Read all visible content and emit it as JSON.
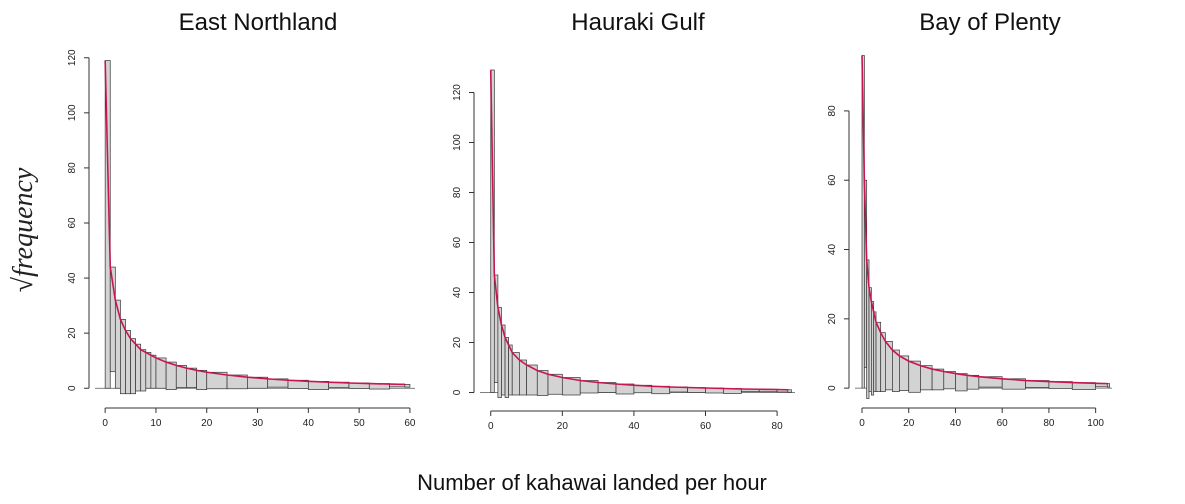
{
  "y_label": "√frequency",
  "x_label": "Number of kahawai landed per hour",
  "chart_data": [
    {
      "type": "rootogram",
      "title": "East Northland",
      "color": "#c8174f",
      "bar_color": "#d3d3d3",
      "x": [
        0,
        1,
        2,
        3,
        4,
        5,
        6,
        7,
        8,
        9,
        10,
        12,
        14,
        16,
        18,
        20,
        24,
        28,
        32,
        36,
        40,
        44,
        48,
        52,
        56,
        59
      ],
      "fitted": [
        119,
        44,
        32,
        25,
        21,
        18,
        16,
        14,
        13,
        12,
        11,
        9.5,
        8.3,
        7.3,
        6.5,
        5.8,
        4.8,
        4,
        3.4,
        2.9,
        2.5,
        2.2,
        1.9,
        1.7,
        1.5,
        1.4
      ],
      "observed": [
        119,
        38,
        32,
        27,
        23,
        20,
        17,
        15,
        13,
        12,
        11,
        10,
        8,
        7,
        7,
        6,
        5,
        4,
        3,
        3,
        3,
        2,
        2,
        2,
        1,
        1
      ],
      "xlim": [
        -2,
        61
      ],
      "ylim": [
        -5,
        121
      ],
      "xticks": [
        0,
        10,
        20,
        30,
        40,
        50,
        60
      ],
      "yticks": [
        0,
        20,
        40,
        60,
        80,
        100,
        120
      ]
    },
    {
      "type": "rootogram",
      "title": "Hauraki Gulf",
      "color": "#c8174f",
      "bar_color": "#d3d3d3",
      "x": [
        0,
        1,
        2,
        3,
        4,
        5,
        6,
        8,
        10,
        13,
        16,
        20,
        25,
        30,
        35,
        40,
        45,
        50,
        55,
        60,
        65,
        70,
        75,
        80,
        83
      ],
      "fitted": [
        129,
        47,
        34,
        27,
        22,
        19,
        16,
        13,
        11,
        8.8,
        7.3,
        6,
        4.8,
        4,
        3.4,
        2.9,
        2.5,
        2.2,
        2,
        1.8,
        1.6,
        1.4,
        1.3,
        1.2,
        1.1
      ],
      "observed": [
        129,
        43,
        36,
        28,
        24,
        20,
        17,
        14,
        12,
        10,
        8,
        7,
        5,
        4,
        4,
        3,
        3,
        2,
        2,
        2,
        2,
        1,
        1,
        1,
        1
      ],
      "xlim": [
        -3,
        85
      ],
      "ylim": [
        -5,
        131
      ],
      "xticks": [
        0,
        20,
        40,
        60,
        80
      ],
      "yticks": [
        0,
        20,
        40,
        60,
        80,
        100,
        120
      ]
    },
    {
      "type": "rootogram",
      "title": "Bay of Plenty",
      "color": "#c8174f",
      "bar_color": "#d3d3d3",
      "x": [
        0,
        1,
        2,
        3,
        4,
        5,
        6,
        8,
        10,
        13,
        16,
        20,
        25,
        30,
        35,
        40,
        45,
        50,
        60,
        70,
        80,
        90,
        100,
        105
      ],
      "fitted": [
        96,
        60,
        37,
        29,
        25,
        22,
        19,
        16,
        13.5,
        11,
        9.3,
        7.8,
        6.5,
        5.5,
        4.8,
        4.2,
        3.7,
        3.3,
        2.7,
        2.2,
        1.9,
        1.6,
        1.4,
        1.3
      ],
      "observed": [
        96,
        54,
        40,
        30,
        27,
        23,
        20,
        17,
        14,
        12,
        10,
        9,
        7,
        6,
        5,
        5,
        4,
        3,
        3,
        2,
        2,
        2,
        1,
        1
      ],
      "xlim": [
        -3,
        107
      ],
      "ylim": [
        -4,
        97
      ],
      "xticks": [
        0,
        20,
        40,
        60,
        80,
        100
      ],
      "yticks": [
        0,
        20,
        40,
        60,
        80
      ]
    }
  ]
}
